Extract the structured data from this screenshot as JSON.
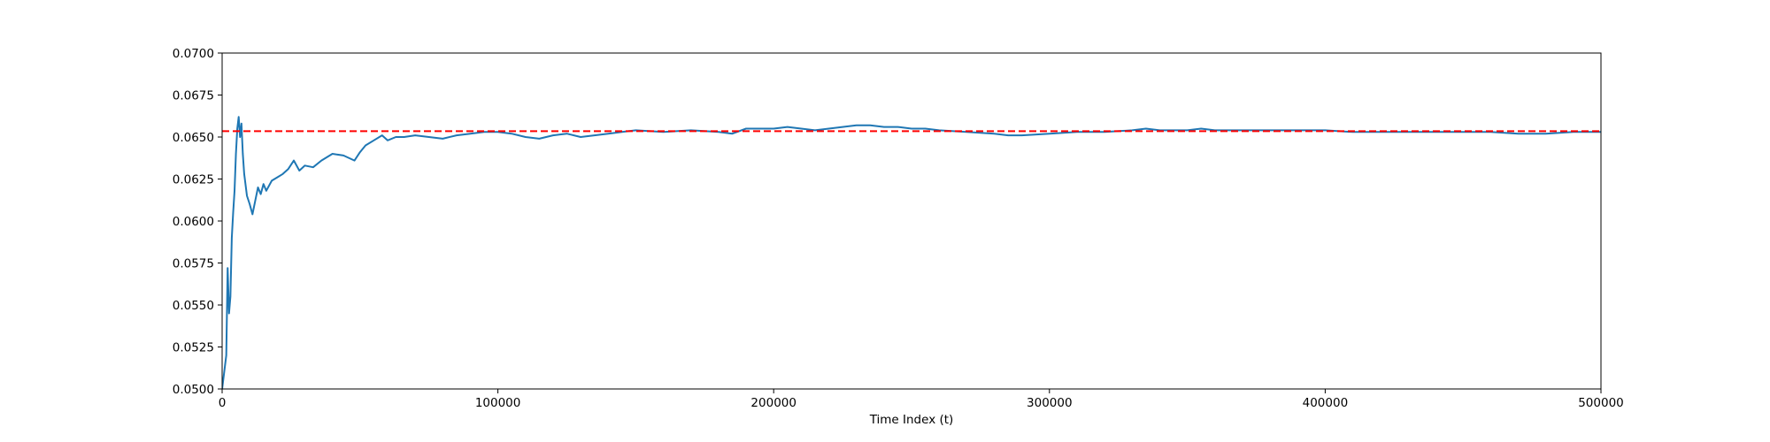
{
  "chart_data": {
    "type": "line",
    "title": "",
    "xlabel": "Time Index (t)",
    "ylabel": "",
    "xlim": [
      0,
      500000
    ],
    "ylim": [
      0.05,
      0.07
    ],
    "x_ticks": [
      0,
      100000,
      200000,
      300000,
      400000,
      500000
    ],
    "x_tick_labels": [
      "0",
      "100000",
      "200000",
      "300000",
      "400000",
      "500000"
    ],
    "y_ticks": [
      0.05,
      0.0525,
      0.055,
      0.0575,
      0.06,
      0.0625,
      0.065,
      0.0675,
      0.07
    ],
    "y_tick_labels": [
      "0.0500",
      "0.0525",
      "0.0550",
      "0.0575",
      "0.0600",
      "0.0625",
      "0.0650",
      "0.0675",
      "0.0700"
    ],
    "grid": false,
    "series": [
      {
        "style": "solid",
        "color": "#1f77b4",
        "x": [
          0,
          1500,
          2000,
          2500,
          3000,
          3500,
          4000,
          4500,
          5000,
          5500,
          6000,
          6500,
          7000,
          7500,
          8000,
          9000,
          10000,
          11000,
          12000,
          13000,
          14000,
          15000,
          16000,
          18000,
          20000,
          22000,
          24000,
          26000,
          28000,
          30000,
          33000,
          36000,
          40000,
          44000,
          48000,
          50000,
          52000,
          55000,
          58000,
          60000,
          63000,
          66000,
          70000,
          75000,
          80000,
          85000,
          90000,
          95000,
          100000,
          105000,
          110000,
          115000,
          120000,
          125000,
          130000,
          135000,
          140000,
          145000,
          150000,
          160000,
          170000,
          180000,
          185000,
          190000,
          195000,
          200000,
          205000,
          210000,
          215000,
          220000,
          225000,
          230000,
          235000,
          240000,
          245000,
          250000,
          255000,
          260000,
          270000,
          280000,
          285000,
          290000,
          300000,
          310000,
          320000,
          330000,
          335000,
          340000,
          350000,
          355000,
          360000,
          370000,
          380000,
          390000,
          400000,
          410000,
          420000,
          430000,
          440000,
          450000,
          460000,
          470000,
          480000,
          490000,
          500000
        ],
        "y": [
          0.05,
          0.052,
          0.0572,
          0.0545,
          0.0555,
          0.059,
          0.0605,
          0.0618,
          0.064,
          0.0655,
          0.0662,
          0.065,
          0.0658,
          0.064,
          0.0628,
          0.0615,
          0.061,
          0.0604,
          0.0612,
          0.062,
          0.0616,
          0.0622,
          0.0618,
          0.0624,
          0.0626,
          0.0628,
          0.0631,
          0.0636,
          0.063,
          0.0633,
          0.0632,
          0.0636,
          0.064,
          0.0639,
          0.0636,
          0.0641,
          0.0645,
          0.0648,
          0.0651,
          0.0648,
          0.065,
          0.065,
          0.0651,
          0.065,
          0.0649,
          0.0651,
          0.0652,
          0.0653,
          0.0653,
          0.0652,
          0.065,
          0.0649,
          0.0651,
          0.0652,
          0.065,
          0.0651,
          0.0652,
          0.0653,
          0.0654,
          0.0653,
          0.0654,
          0.0653,
          0.0652,
          0.0655,
          0.0655,
          0.0655,
          0.0656,
          0.0655,
          0.0654,
          0.0655,
          0.0656,
          0.0657,
          0.0657,
          0.0656,
          0.0656,
          0.0655,
          0.0655,
          0.0654,
          0.0653,
          0.0652,
          0.0651,
          0.0651,
          0.0652,
          0.0653,
          0.0653,
          0.0654,
          0.0655,
          0.0654,
          0.0654,
          0.0655,
          0.0654,
          0.0654,
          0.0654,
          0.0654,
          0.0654,
          0.0653,
          0.0653,
          0.0653,
          0.0653,
          0.0653,
          0.0653,
          0.0652,
          0.0652,
          0.0653,
          0.0653
        ]
      }
    ],
    "reference_line": {
      "orientation": "horizontal",
      "y": 0.06535,
      "style": "dashed",
      "color": "#ff0000"
    }
  }
}
